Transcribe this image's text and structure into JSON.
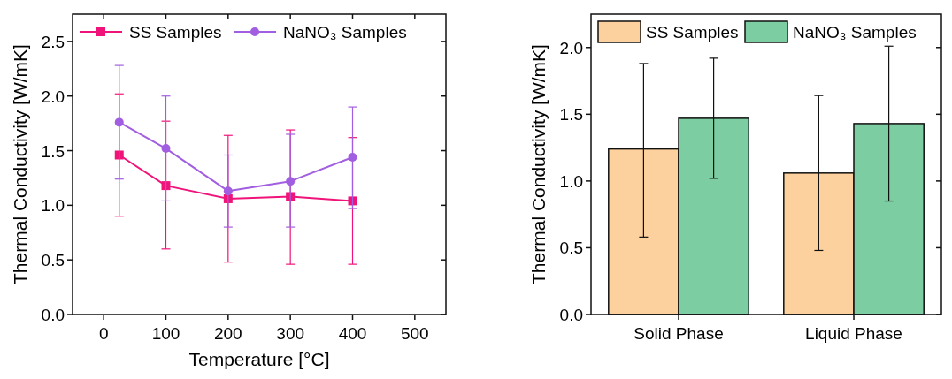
{
  "chart_data": [
    {
      "type": "line",
      "xlabel": "Temperature [°C]",
      "ylabel": "Thermal Conductivity [W/mK]",
      "x": [
        25,
        100,
        200,
        300,
        400
      ],
      "xlim": [
        -50,
        550
      ],
      "xticks": [
        0,
        100,
        200,
        300,
        400,
        500
      ],
      "ylim": [
        0,
        2.75
      ],
      "yticks": [
        {
          "value": 0,
          "label": "0.0"
        },
        0.5,
        {
          "value": 1,
          "label": "1.0"
        },
        1.5,
        {
          "value": 2,
          "label": "2.0"
        },
        2.5
      ],
      "legend": "top",
      "grid": false,
      "series": [
        {
          "name": "SS Samples",
          "color": "#f0147a",
          "marker": "square",
          "values": [
            1.46,
            1.18,
            1.06,
            1.08,
            1.04
          ],
          "errors": [
            [
              0.9,
              2.02
            ],
            [
              0.6,
              1.77
            ],
            [
              0.48,
              1.64
            ],
            [
              0.46,
              1.69
            ],
            [
              0.46,
              1.62
            ]
          ]
        },
        {
          "name": "NaNO₃ Samples",
          "color": "#a25ee0",
          "marker": "circle",
          "values": [
            1.76,
            1.52,
            1.13,
            1.22,
            1.44
          ],
          "errors": [
            [
              1.24,
              2.28
            ],
            [
              1.04,
              2.0
            ],
            [
              0.8,
              1.46
            ],
            [
              0.8,
              1.65
            ],
            [
              0.97,
              1.9
            ]
          ]
        }
      ]
    },
    {
      "type": "bar",
      "ylabel": "Thermal Conductivity [W/mK]",
      "categories": [
        "Solid Phase",
        "Liquid Phase"
      ],
      "ylim": [
        0,
        2.25
      ],
      "yticks": [
        {
          "value": 0,
          "label": "0.0"
        },
        0.5,
        {
          "value": 1,
          "label": "1.0"
        },
        1.5,
        {
          "value": 2,
          "label": "2.0"
        }
      ],
      "legend": "top",
      "grid": false,
      "series": [
        {
          "name": "SS Samples",
          "color": "#fdd19e",
          "values": [
            1.24,
            1.06
          ],
          "errors": [
            [
              0.58,
              1.88
            ],
            [
              0.48,
              1.64
            ]
          ]
        },
        {
          "name": "NaNO₃ Samples",
          "color": "#7dcda3",
          "values": [
            1.47,
            1.43
          ],
          "errors": [
            [
              1.02,
              1.92
            ],
            [
              0.85,
              2.01
            ]
          ]
        }
      ]
    }
  ]
}
